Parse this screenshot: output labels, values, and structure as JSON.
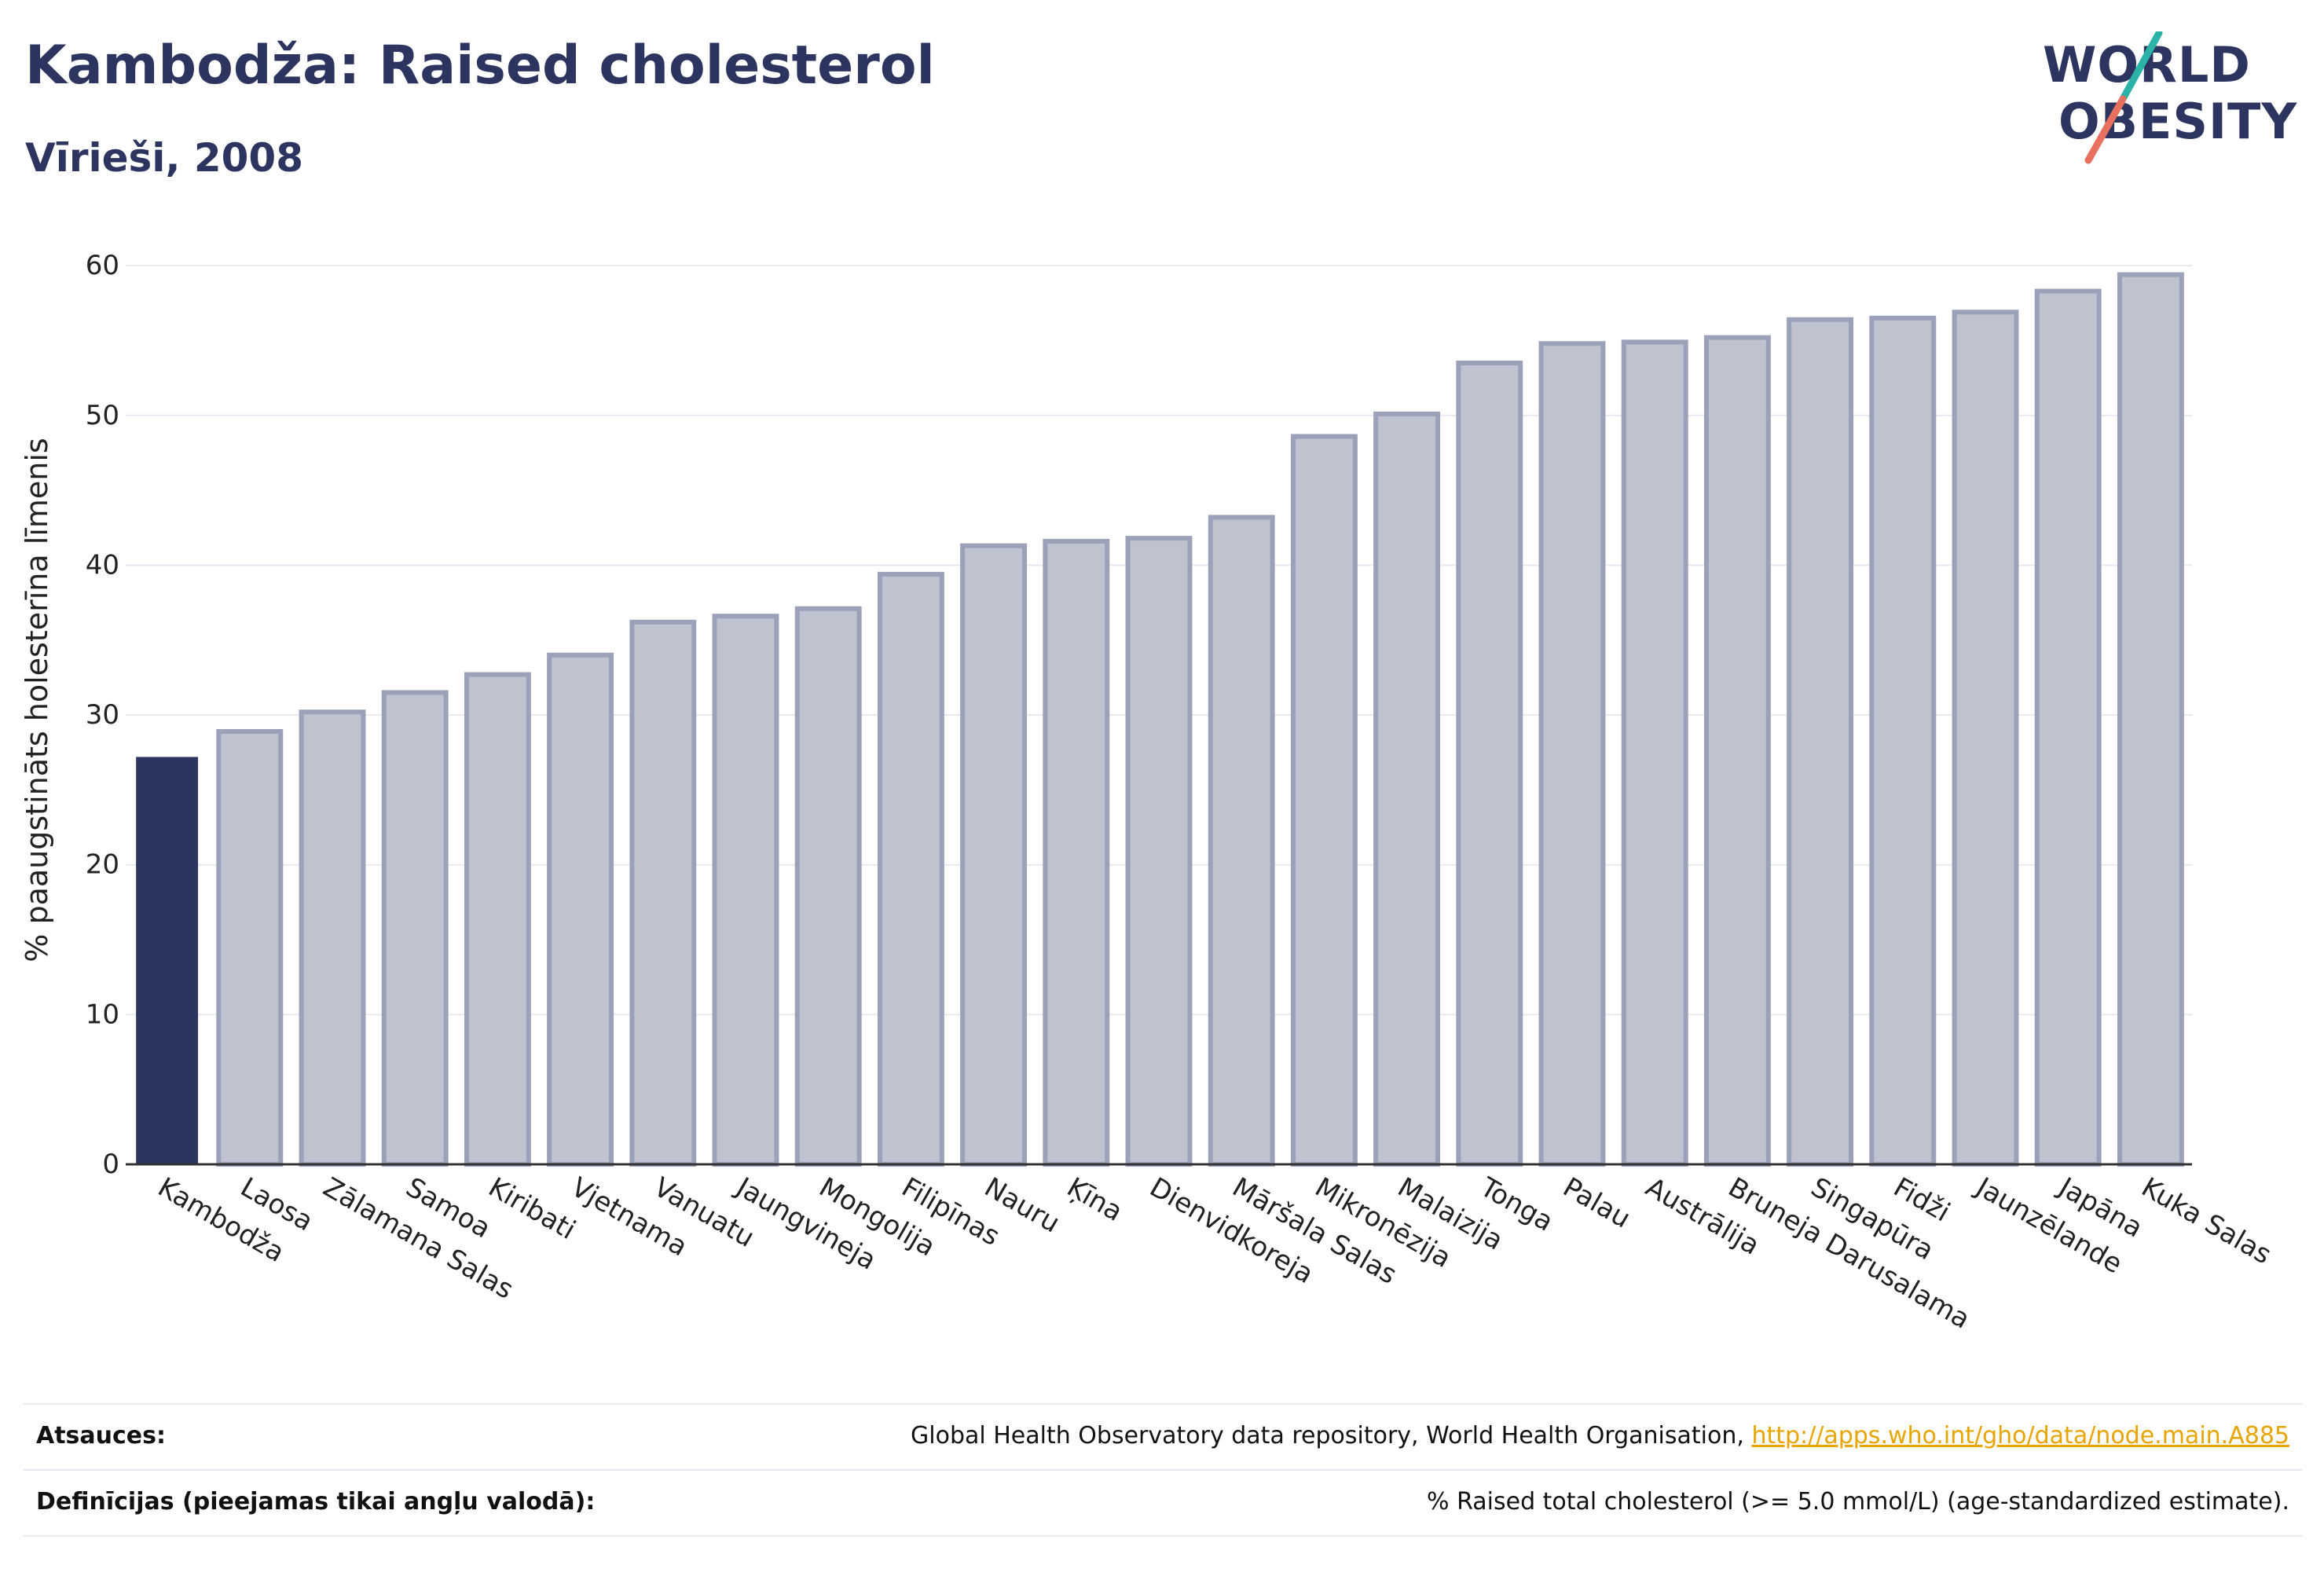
{
  "header": {
    "title": "Kambodža: Raised cholesterol",
    "subtitle": "Vīrieši, 2008"
  },
  "logo": {
    "line1": "WORLD",
    "line2": "OBESITY",
    "accent_teal": "#2bb3a8",
    "accent_coral": "#e8705f"
  },
  "colors": {
    "highlight_bar": "#2b3560",
    "other_bar_fill": "#bfc3cf",
    "other_bar_stroke": "#9aa1b8",
    "text": "#2b3560"
  },
  "chart_data": {
    "type": "bar",
    "ylabel": "% paaugstināts holesterīna līmenis",
    "xlabel": "",
    "ylim": [
      0,
      62
    ],
    "yticks": [
      0,
      10,
      20,
      30,
      40,
      50,
      60
    ],
    "grid": true,
    "highlight": "Kambodža",
    "categories": [
      "Kambodža",
      "Laosa",
      "Zālamana Salas",
      "Samoa",
      "Kiribati",
      "Vjetnama",
      "Vanuatu",
      "Jaungvineja",
      "Mongolija",
      "Filipīnas",
      "Nauru",
      "Ķīna",
      "Dienvidkoreja",
      "Māršala Salas",
      "Mikronēzija",
      "Malaizija",
      "Tonga",
      "Palau",
      "Austrālija",
      "Bruneja Darusalama",
      "Singapūra",
      "Fidži",
      "Jaunzēlande",
      "Japāna",
      "Kuka Salas"
    ],
    "values": [
      27.2,
      28.9,
      30.2,
      31.5,
      32.7,
      34.0,
      36.2,
      36.6,
      37.1,
      39.4,
      41.3,
      41.6,
      41.8,
      43.2,
      48.6,
      50.1,
      53.5,
      54.8,
      54.9,
      55.2,
      56.4,
      56.5,
      56.9,
      58.3,
      59.4
    ]
  },
  "footer": {
    "sources_label": "Atsauces:",
    "sources_text": "Global Health Observatory data repository, World Health Organisation, ",
    "sources_link": "http://apps.who.int/gho/data/node.main.A885",
    "definitions_label": "Definīcijas (pieejamas tikai angļu valodā):",
    "definitions_text": "% Raised total cholesterol (>= 5.0 mmol/L) (age-standardized estimate)."
  }
}
